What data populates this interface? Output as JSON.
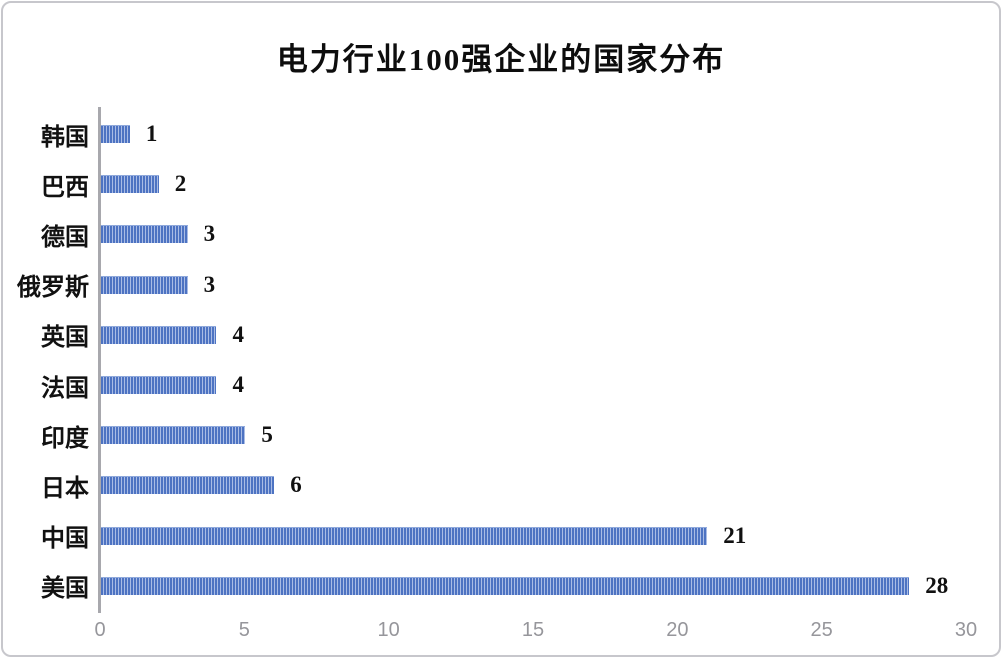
{
  "frame": {
    "border_color": "#c7c7cc",
    "background": "#ffffff"
  },
  "chart_data": {
    "type": "bar",
    "orientation": "horizontal",
    "title": "电力行业100强企业的国家分布",
    "categories": [
      "韩国",
      "巴西",
      "德国",
      "俄罗斯",
      "英国",
      "法国",
      "印度",
      "日本",
      "中国",
      "美国"
    ],
    "values": [
      1,
      2,
      3,
      3,
      4,
      4,
      5,
      6,
      21,
      28
    ],
    "value_labels": [
      "1",
      "2",
      "3",
      "3",
      "4",
      "4",
      "5",
      "6",
      "21",
      "28"
    ],
    "xlabel": "",
    "ylabel": "",
    "xlim": [
      0,
      30
    ],
    "x_ticks": [
      "0",
      "5",
      "10",
      "15",
      "20",
      "25",
      "30"
    ],
    "grid": false,
    "legend": false,
    "colors": {
      "bar_stripe_dark": "#4d73c2",
      "bar_stripe_light": "#a9bce5",
      "axis_line": "#a8a8ad",
      "tick_label": "#96969b",
      "value_label": "#111111",
      "title": "#0d0d0d"
    }
  }
}
